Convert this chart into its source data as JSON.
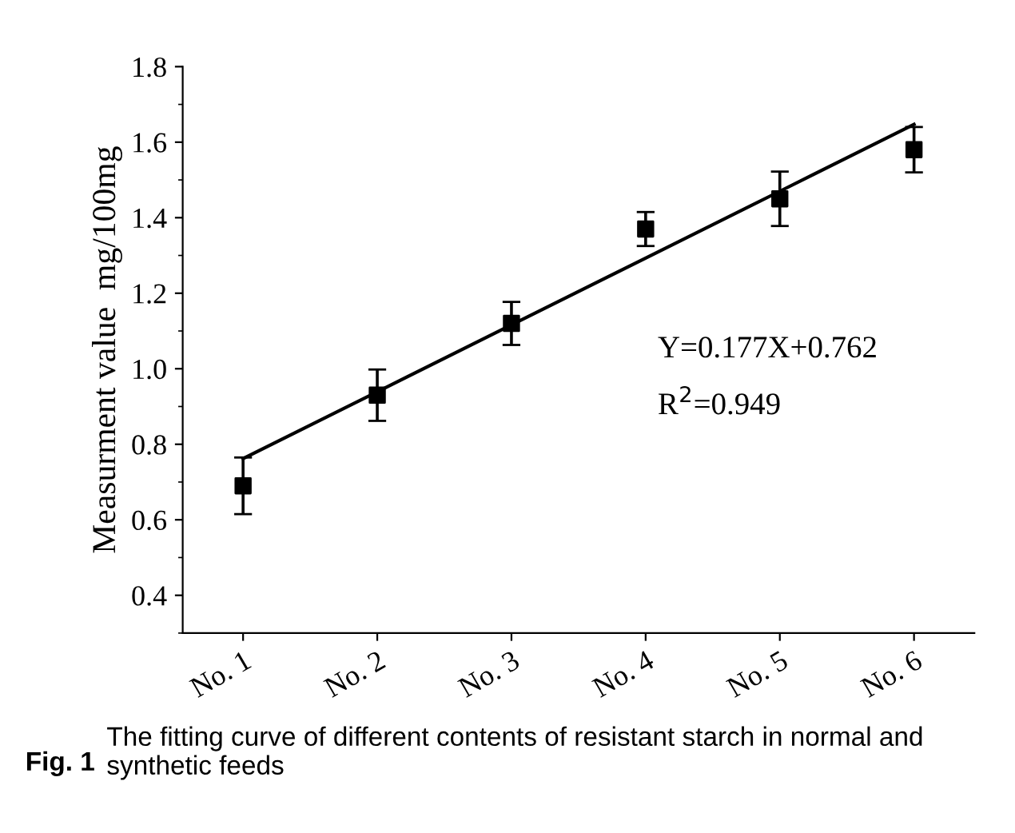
{
  "chart_data": {
    "type": "scatter",
    "ylabel": "Measurment value  mg/100mg",
    "categories": [
      "No. 1",
      "No. 2",
      "No. 3",
      "No. 4",
      "No. 5",
      "No. 6"
    ],
    "series": [
      {
        "color": "#000000",
        "marker": "square",
        "values": [
          0.69,
          0.93,
          1.12,
          1.37,
          1.45,
          1.58
        ],
        "errors": [
          0.075,
          0.068,
          0.057,
          0.045,
          0.072,
          0.06
        ]
      },
      {
        "type": "line",
        "color": "#000000",
        "marker": "none",
        "line_style": "solid",
        "values": [
          0.762,
          0.939,
          1.116,
          1.293,
          1.47,
          1.647
        ]
      }
    ],
    "ylim": [
      0.3,
      1.8
    ],
    "yticks": [
      {
        "value": 0.4,
        "label": "0.4"
      },
      {
        "value": 0.6,
        "label": "0.6"
      },
      {
        "value": 0.8,
        "label": "0.8"
      },
      {
        "value": 1.0,
        "label": "1.0"
      },
      {
        "value": 1.2,
        "label": "1.2"
      },
      {
        "value": 1.4,
        "label": "1.4"
      },
      {
        "value": 1.6,
        "label": "1.6"
      },
      {
        "value": 1.8,
        "label": "1.8"
      }
    ],
    "grid": false,
    "annotations": [
      "Y=0.177X+0.762",
      "R$^{2}$=0.949",
      "Fig. 1",
      "The fitting curve of different contents of resistant starch in normal and synthetic feeds"
    ]
  }
}
